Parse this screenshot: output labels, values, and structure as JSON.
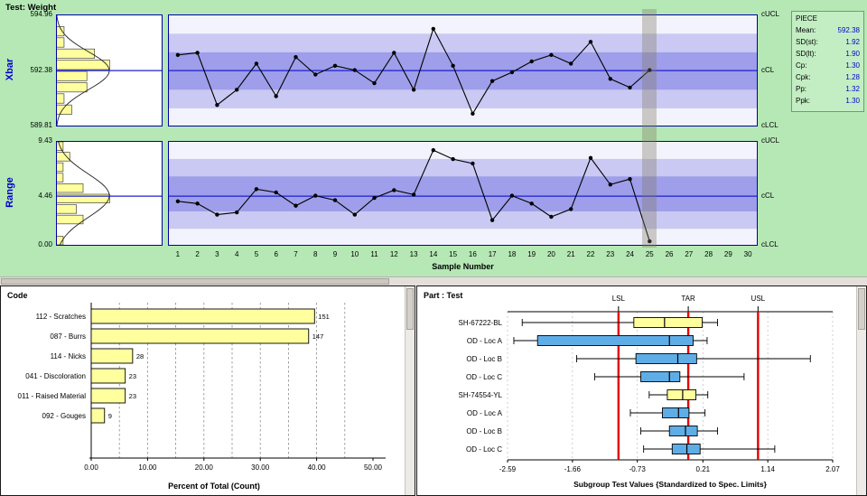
{
  "header": {
    "title": "Test: Weight"
  },
  "colors": {
    "background_green": "#b5e8b5",
    "zone_inner": "#9e9eea",
    "zone_mid": "#c9c9f3",
    "zone_outer": "#f3f3fd",
    "control_line_blue": "#1f1fd0",
    "border_blue": "#0000a8",
    "histogram_yellow": "#ffff9e",
    "pareto_yellow": "#ffff9e",
    "box_blue": "#5fade6",
    "box_yellow": "#ffff9e",
    "spec_red": "#e60000",
    "value_blue": "#0000cc"
  },
  "stats_panel": {
    "title": "PIECE",
    "rows": [
      {
        "label": "Mean:",
        "value": "592.38"
      },
      {
        "label": "SD(st):",
        "value": "1.92"
      },
      {
        "label": "SD(lt):",
        "value": "1.90"
      },
      {
        "label": "Cp:",
        "value": "1.30"
      },
      {
        "label": "Cpk:",
        "value": "1.28"
      },
      {
        "label": "Pp:",
        "value": "1.32"
      },
      {
        "label": "Ppk:",
        "value": "1.30"
      }
    ]
  },
  "sample_axis": {
    "label": "Sample Number",
    "ticks": [
      "1",
      "2",
      "3",
      "4",
      "5",
      "6",
      "7",
      "8",
      "9",
      "10",
      "11",
      "12",
      "13",
      "14",
      "15",
      "16",
      "17",
      "18",
      "19",
      "20",
      "21",
      "22",
      "23",
      "24",
      "25",
      "26",
      "27",
      "28",
      "29",
      "30"
    ]
  },
  "chart_data": [
    {
      "id": "xbar",
      "type": "line",
      "title": "Xbar",
      "ucl": 594.96,
      "cl": 592.38,
      "lcl": 589.81,
      "axis_label_left": [
        "594.96",
        "592.38",
        "589.81"
      ],
      "axis_label_right": [
        "cUCL",
        "cCL",
        "cLCL"
      ],
      "x_range": [
        1,
        30
      ],
      "values": [
        593.1,
        593.2,
        590.8,
        591.5,
        592.7,
        591.2,
        593.0,
        592.2,
        592.6,
        592.4,
        591.8,
        593.2,
        591.5,
        594.3,
        592.6,
        590.4,
        591.9,
        592.3,
        592.8,
        593.1,
        592.7,
        593.7,
        592.0,
        591.6,
        592.4
      ],
      "highlight_sample": 25,
      "histogram_bins_top_to_bottom": [
        0,
        1,
        1,
        5,
        7,
        4,
        4,
        1,
        2,
        0
      ]
    },
    {
      "id": "range",
      "type": "line",
      "title": "Range",
      "ucl": 9.43,
      "cl": 4.46,
      "lcl": 0.0,
      "axis_label_left": [
        "9.43",
        "4.46",
        "0.00"
      ],
      "axis_label_right": [
        "cUCL",
        "cCL",
        "cLCL"
      ],
      "x_range": [
        1,
        30
      ],
      "values": [
        4.0,
        3.8,
        2.8,
        3.0,
        5.1,
        4.8,
        3.6,
        4.5,
        4.1,
        2.8,
        4.3,
        5.0,
        4.6,
        8.6,
        7.8,
        7.4,
        2.3,
        4.5,
        3.8,
        2.6,
        3.3,
        7.9,
        5.5,
        6.0,
        0.4
      ],
      "highlight_sample": 25,
      "histogram_bins_top_to_bottom": [
        1,
        2,
        1,
        1,
        4,
        8,
        3,
        4,
        0,
        1
      ]
    },
    {
      "id": "pareto",
      "type": "bar",
      "title": "Code",
      "orientation": "horizontal",
      "categories": [
        "112 - Scratches",
        "087 - Burrs",
        "114 - Nicks",
        "041 - Discoloration",
        "011 - Raised Material",
        "092 - Gouges"
      ],
      "counts": [
        151,
        147,
        28,
        23,
        23,
        9
      ],
      "xlabel": "Percent of Total (Count)",
      "xlim": [
        0,
        50
      ],
      "x_tick_labels": [
        "0.00",
        "10.00",
        "20.00",
        "30.00",
        "40.00",
        "50.00"
      ]
    },
    {
      "id": "boxplot",
      "type": "boxplot",
      "title": "Part : Test",
      "xlabel": "Subgroup Test Values {Standardized to Spec. Limits}",
      "xlim": [
        -2.59,
        2.07
      ],
      "x_tick_labels": [
        "-2.59",
        "-1.66",
        "-0.73",
        "0.21",
        "1.14",
        "2.07"
      ],
      "spec_lines": [
        {
          "label": "LSL",
          "value": -1.0
        },
        {
          "label": "TAR",
          "value": 0.0
        },
        {
          "label": "USL",
          "value": 1.0
        }
      ],
      "rows": [
        {
          "label": "SH-67222-BL",
          "color": "#ffff9e",
          "whisker_low": -2.38,
          "q1": -0.78,
          "median": -0.34,
          "q3": 0.2,
          "whisker_high": 0.42
        },
        {
          "label": "OD - Loc A",
          "color": "#5fade6",
          "whisker_low": -2.5,
          "q1": -2.16,
          "median": -0.27,
          "q3": 0.07,
          "whisker_high": 0.27
        },
        {
          "label": "OD - Loc B",
          "color": "#5fade6",
          "whisker_low": -1.6,
          "q1": -0.75,
          "median": -0.15,
          "q3": 0.12,
          "whisker_high": 1.75
        },
        {
          "label": "OD - Loc C",
          "color": "#5fade6",
          "whisker_low": -1.34,
          "q1": -0.68,
          "median": -0.27,
          "q3": -0.12,
          "whisker_high": 0.8
        },
        {
          "label": "SH-74554-YL",
          "color": "#ffff9e",
          "whisker_low": -0.56,
          "q1": -0.3,
          "median": -0.08,
          "q3": 0.11,
          "whisker_high": 0.28
        },
        {
          "label": "OD - Loc A",
          "color": "#5fade6",
          "whisker_low": -0.83,
          "q1": -0.37,
          "median": -0.14,
          "q3": 0.01,
          "whisker_high": 0.24
        },
        {
          "label": "OD - Loc B",
          "color": "#5fade6",
          "whisker_low": -0.68,
          "q1": -0.27,
          "median": -0.04,
          "q3": 0.13,
          "whisker_high": 0.42
        },
        {
          "label": "OD - Loc C",
          "color": "#5fade6",
          "whisker_low": -0.64,
          "q1": -0.23,
          "median": -0.02,
          "q3": 0.17,
          "whisker_high": 1.24
        }
      ]
    }
  ]
}
